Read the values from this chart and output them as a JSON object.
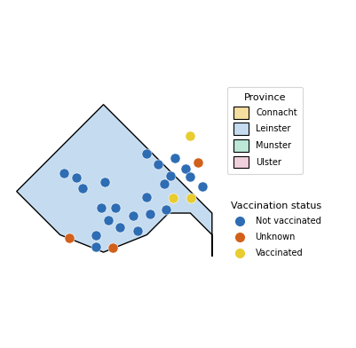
{
  "province_colors": {
    "Connacht": "#F5DFA0",
    "Leinster": "#C5DCF0",
    "Munster": "#BDE8D8",
    "Ulster": "#F0D0DC"
  },
  "county_province": {
    "Galway": "Connacht",
    "Mayo": "Connacht",
    "Roscommon": "Connacht",
    "Sligo": "Connacht",
    "Leitrim": "Connacht",
    "Dublin": "Leinster",
    "Kildare": "Leinster",
    "Wicklow": "Leinster",
    "Wexford": "Leinster",
    "Carlow": "Leinster",
    "Kilkenny": "Leinster",
    "Laois": "Leinster",
    "Offaly": "Leinster",
    "Westmeath": "Leinster",
    "Meath": "Leinster",
    "Louth": "Leinster",
    "Longford": "Leinster",
    "Cork": "Munster",
    "Kerry": "Munster",
    "Limerick": "Munster",
    "Clare": "Munster",
    "Tipperary": "Munster",
    "Waterford": "Munster",
    "Donegal": "Ulster",
    "Monaghan": "Ulster",
    "Cavan": "Ulster",
    "Antrim": "Ulster",
    "Armagh": "Ulster",
    "Down": "Ulster",
    "Fermanagh": "Ulster",
    "Londonderry": "Ulster",
    "Tyrone": "Ulster"
  },
  "dots": [
    {
      "lon": -6.5,
      "lat": 54.28,
      "status": "Vaccinated"
    },
    {
      "lon": -7.5,
      "lat": 53.88,
      "status": "Not vaccinated"
    },
    {
      "lon": -7.25,
      "lat": 53.62,
      "status": "Not vaccinated"
    },
    {
      "lon": -6.85,
      "lat": 53.76,
      "status": "Not vaccinated"
    },
    {
      "lon": -6.32,
      "lat": 53.66,
      "status": "Orange"
    },
    {
      "lon": -6.62,
      "lat": 53.53,
      "status": "Not vaccinated"
    },
    {
      "lon": -6.95,
      "lat": 53.35,
      "status": "Not vaccinated"
    },
    {
      "lon": -6.5,
      "lat": 53.33,
      "status": "Not vaccinated"
    },
    {
      "lon": -7.1,
      "lat": 53.18,
      "status": "Not vaccinated"
    },
    {
      "lon": -6.9,
      "lat": 52.84,
      "status": "Vaccinated"
    },
    {
      "lon": -7.5,
      "lat": 52.86,
      "status": "Not vaccinated"
    },
    {
      "lon": -6.48,
      "lat": 52.84,
      "status": "Vaccinated"
    },
    {
      "lon": -7.05,
      "lat": 52.58,
      "status": "Not vaccinated"
    },
    {
      "lon": -7.42,
      "lat": 52.48,
      "status": "Not vaccinated"
    },
    {
      "lon": -7.82,
      "lat": 52.43,
      "status": "Not vaccinated"
    },
    {
      "lon": -8.22,
      "lat": 52.63,
      "status": "Not vaccinated"
    },
    {
      "lon": -8.55,
      "lat": 52.63,
      "status": "Not vaccinated"
    },
    {
      "lon": -8.38,
      "lat": 52.33,
      "status": "Not vaccinated"
    },
    {
      "lon": -8.12,
      "lat": 52.18,
      "status": "Not vaccinated"
    },
    {
      "lon": -7.72,
      "lat": 52.1,
      "status": "Not vaccinated"
    },
    {
      "lon": -8.68,
      "lat": 51.98,
      "status": "Not vaccinated"
    },
    {
      "lon": -9.28,
      "lat": 51.93,
      "status": "Orange"
    },
    {
      "lon": -8.68,
      "lat": 51.73,
      "status": "Not vaccinated"
    },
    {
      "lon": -8.28,
      "lat": 51.7,
      "status": "Orange"
    },
    {
      "lon": -8.48,
      "lat": 53.22,
      "status": "Not vaccinated"
    },
    {
      "lon": -8.98,
      "lat": 53.08,
      "status": "Not vaccinated"
    },
    {
      "lon": -9.12,
      "lat": 53.32,
      "status": "Not vaccinated"
    },
    {
      "lon": -9.42,
      "lat": 53.42,
      "status": "Not vaccinated"
    },
    {
      "lon": -6.22,
      "lat": 53.12,
      "status": "Not vaccinated"
    }
  ],
  "status_colors": {
    "Not vaccinated": "#2E6DB4",
    "Orange": "#D2601A",
    "Vaccinated": "#E8CC30"
  },
  "legend_province_title": "Province",
  "legend_vax_title": "Vaccination status",
  "legend_items": [
    "Not vaccinated",
    "Unknown",
    "Vaccinated"
  ],
  "legend_colors": [
    "#2E6DB4",
    "#D2601A",
    "#E8CC30"
  ],
  "background_color": "#ffffff",
  "xlim": [
    -10.8,
    -5.8
  ],
  "ylim": [
    51.3,
    55.5
  ],
  "figsize": [
    4.01,
    3.92
  ],
  "dpi": 100,
  "dot_size": 8,
  "county_edge_color": "#111111",
  "county_edge_width": 0.7,
  "legend_fontsize": 7,
  "legend_title_fontsize": 8
}
